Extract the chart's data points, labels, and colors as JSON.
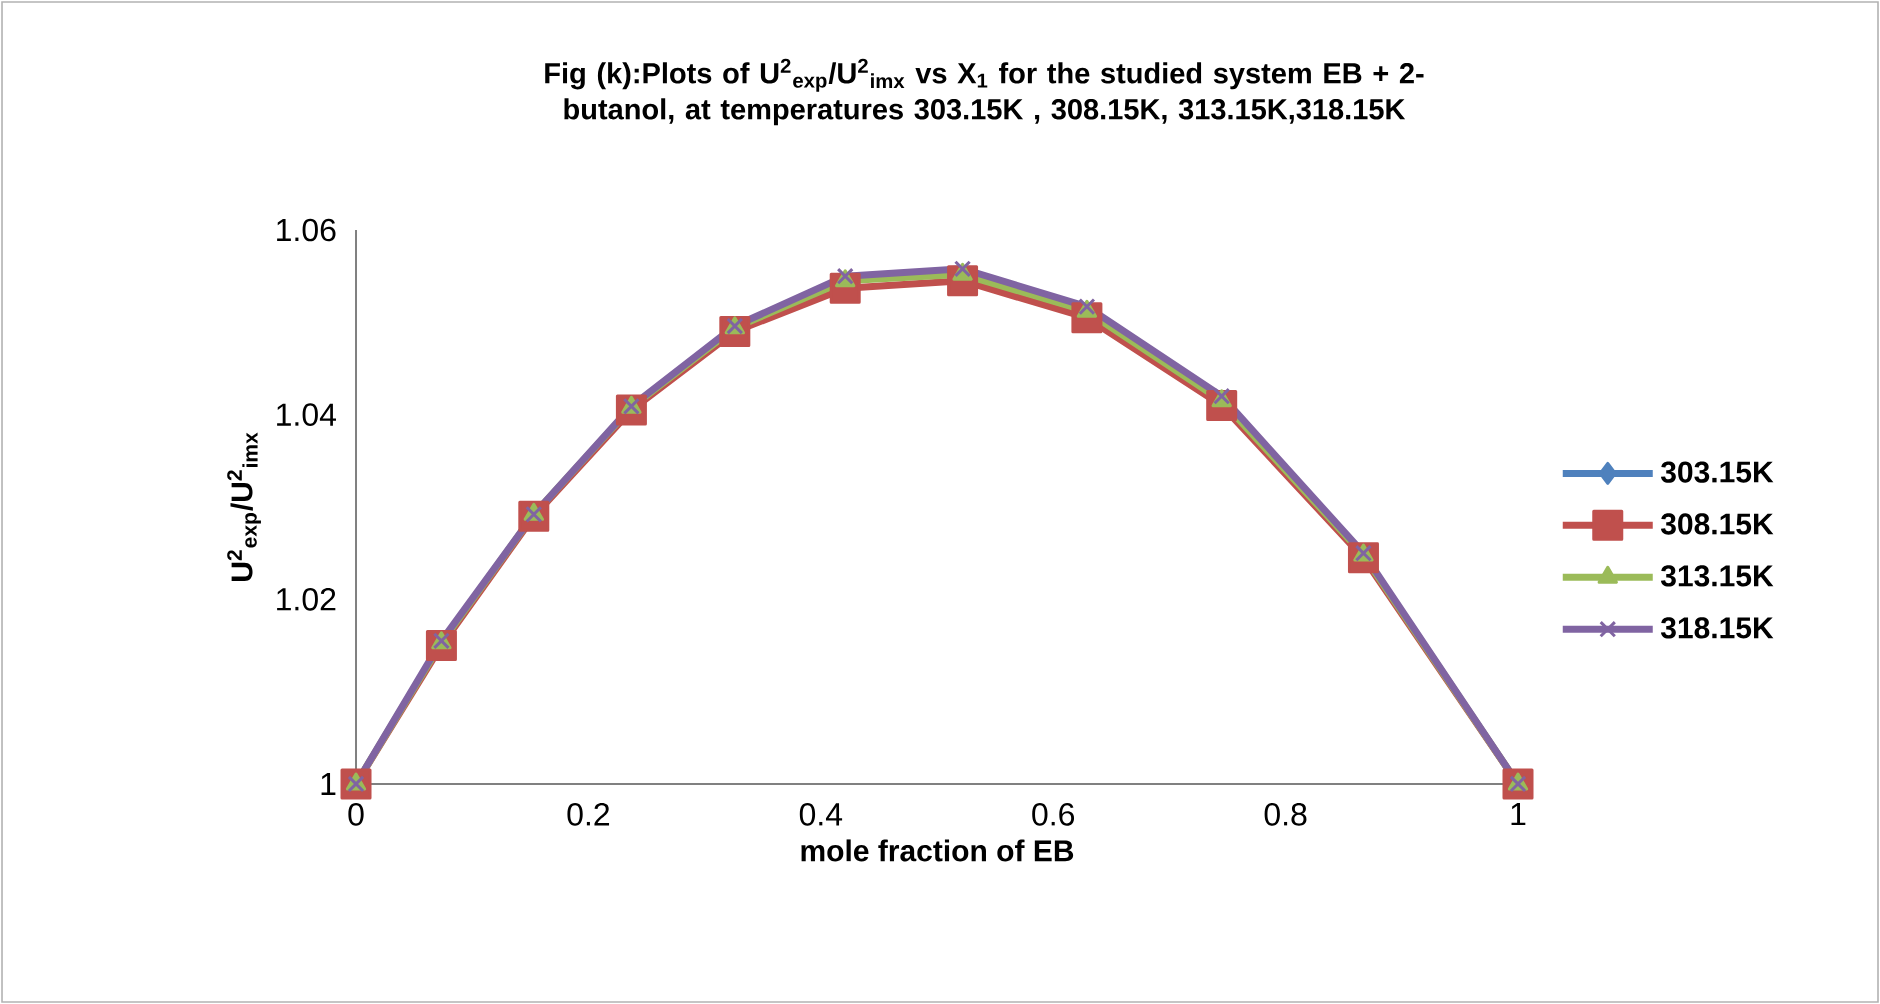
{
  "chart_data": {
    "type": "line",
    "title": "Fig (k):Plots of U$^{2}$$_{exp}$/U$^{2}$$_{imx}$  vs  X$_{1}$ for the studied system EB + 2-butanol, at temperatures 303.15K , 308.15K, 313.15K,318.15K",
    "xlabel": "mole fraction of EB",
    "ylabel": "U$^{2}$$_{exp}$/U$^{2}$$_{imx}$",
    "x": [
      0,
      0.0735,
      0.153,
      0.237,
      0.326,
      0.421,
      0.522,
      0.629,
      0.745,
      0.867,
      1
    ],
    "xlim": [
      0,
      1
    ],
    "xticks": [
      0,
      0.2,
      0.4,
      0.6,
      0.8,
      1
    ],
    "ylim": [
      1,
      1.06
    ],
    "yticks": [
      1,
      1.02,
      1.04,
      1.06
    ],
    "legend": "right",
    "series": [
      {
        "name": "303.15K",
        "color": "#4f81bd",
        "marker": "diamond",
        "values": [
          null,
          null,
          null,
          null,
          null,
          null,
          null,
          null,
          null,
          null,
          null
        ]
      },
      {
        "name": "308.15K",
        "color": "#c0504d",
        "marker": "square",
        "values": [
          1,
          1.015,
          1.029,
          1.0405,
          1.049,
          1.0537,
          1.0545,
          1.0505,
          1.041,
          1.0245,
          1
        ]
      },
      {
        "name": "313.15K",
        "color": "#9bbb59",
        "marker": "triangle",
        "values": [
          1,
          1.0153,
          1.0292,
          1.0408,
          1.0494,
          1.0545,
          1.0552,
          1.0512,
          1.0415,
          1.0248,
          1
        ]
      },
      {
        "name": "318.15K",
        "color": "#8064a2",
        "marker": "cross",
        "values": [
          1,
          1.0155,
          1.0292,
          1.0409,
          1.0496,
          1.055,
          1.0558,
          1.0517,
          1.042,
          1.025,
          1
        ]
      }
    ]
  }
}
